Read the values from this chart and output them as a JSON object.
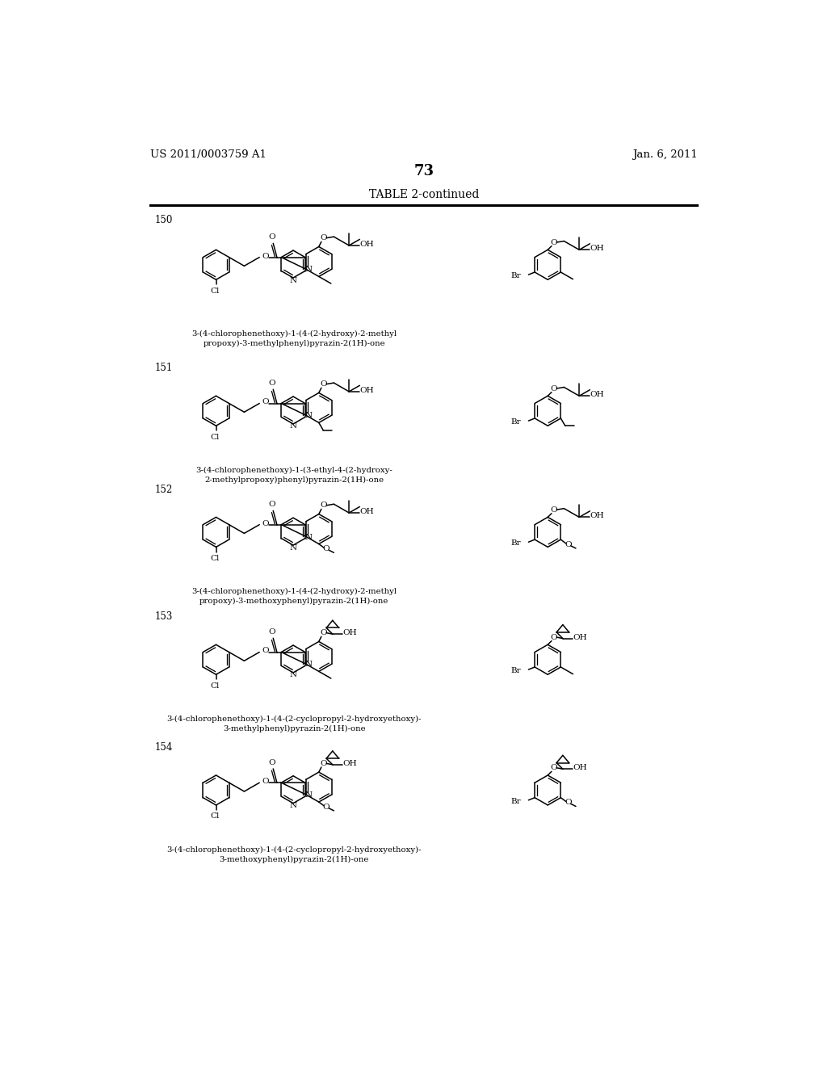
{
  "bg": "#ffffff",
  "header_left": "US 2011/0003759 A1",
  "header_right": "Jan. 6, 2011",
  "page_num": "73",
  "table_title": "TABLE 2-continued",
  "rows": [
    {
      "num": "150",
      "name_left": "3-(4-chlorophenethoxy)-1-(4-(2-hydroxy)-2-methyl\npropoxy)-3-methylphenyl)pyrazin-2(1H)-one",
      "right_sub": "methyl",
      "left_sub": "methyl"
    },
    {
      "num": "151",
      "name_left": "3-(4-chlorophenethoxy)-1-(3-ethyl-4-(2-hydroxy-\n2-methylpropoxy)phenyl)pyrazin-2(1H)-one",
      "right_sub": "ethyl",
      "left_sub": "ethyl"
    },
    {
      "num": "152",
      "name_left": "3-(4-chlorophenethoxy)-1-(4-(2-hydroxy)-2-methyl\npropoxy)-3-methoxyphenyl)pyrazin-2(1H)-one",
      "right_sub": "methoxy",
      "left_sub": "methoxy"
    },
    {
      "num": "153",
      "name_left": "3-(4-chlorophenethoxy)-1-(4-(2-cyclopropyl-2-hydroxyethoxy)-\n3-methylphenyl)pyrazin-2(1H)-one",
      "right_sub": "methyl",
      "left_sub": "methyl",
      "cyclopropyl": true
    },
    {
      "num": "154",
      "name_left": "3-(4-chlorophenethoxy)-1-(4-(2-cyclopropyl-2-hydroxyethoxy)-\n3-methoxyphenyl)pyrazin-2(1H)-one",
      "right_sub": "methoxy",
      "left_sub": "methoxy",
      "cyclopropyl": true
    }
  ]
}
